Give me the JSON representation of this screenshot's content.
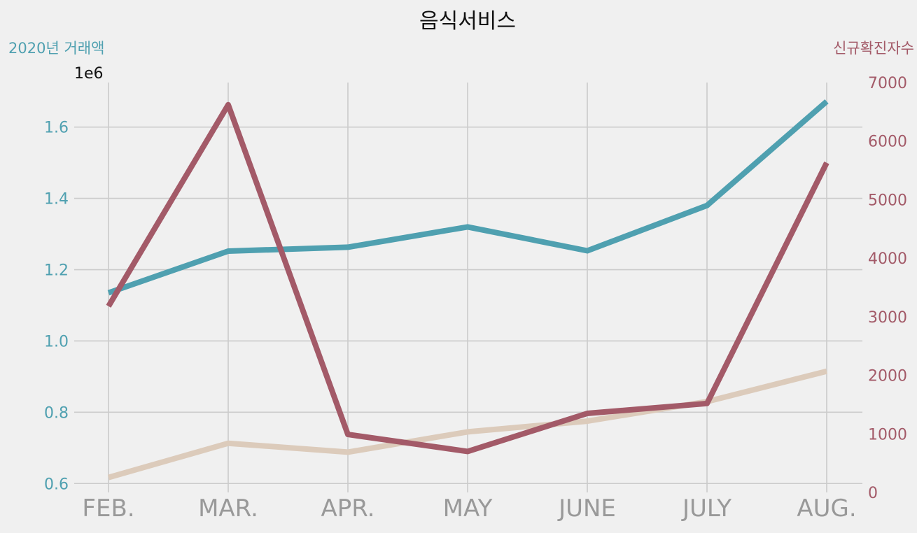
{
  "chart_data": {
    "type": "line",
    "title": "음식서비스",
    "categories": [
      "FEB.",
      "MAR.",
      "APR.",
      "MAY",
      "JUNE",
      "JULY",
      "AUG."
    ],
    "left_axis": {
      "label": "2020년 거래액",
      "offset_text": "1e6",
      "color": "#4fa0b0",
      "ylim": [
        0.575,
        1.725
      ],
      "ticks": [
        "0.6",
        "0.8",
        "1.0",
        "1.2",
        "1.4",
        "1.6"
      ]
    },
    "right_axis": {
      "label": "신규확진자수",
      "color": "#a35a68",
      "ylim": [
        0,
        7000
      ],
      "ticks": [
        "0",
        "1000",
        "2000",
        "3000",
        "4000",
        "5000",
        "6000",
        "7000"
      ]
    },
    "series": [
      {
        "color": "#4fa0b0",
        "axis": "left",
        "values": [
          1.135,
          1.252,
          1.263,
          1.32,
          1.253,
          1.38,
          1.672
        ]
      },
      {
        "color": "#dccbbb",
        "axis": "left",
        "values": [
          0.617,
          0.713,
          0.688,
          0.745,
          0.775,
          0.83,
          0.915
        ]
      },
      {
        "color": "#a35a68",
        "axis": "right",
        "values": [
          3180,
          6620,
          990,
          700,
          1350,
          1520,
          5630
        ]
      }
    ],
    "grid": true
  }
}
